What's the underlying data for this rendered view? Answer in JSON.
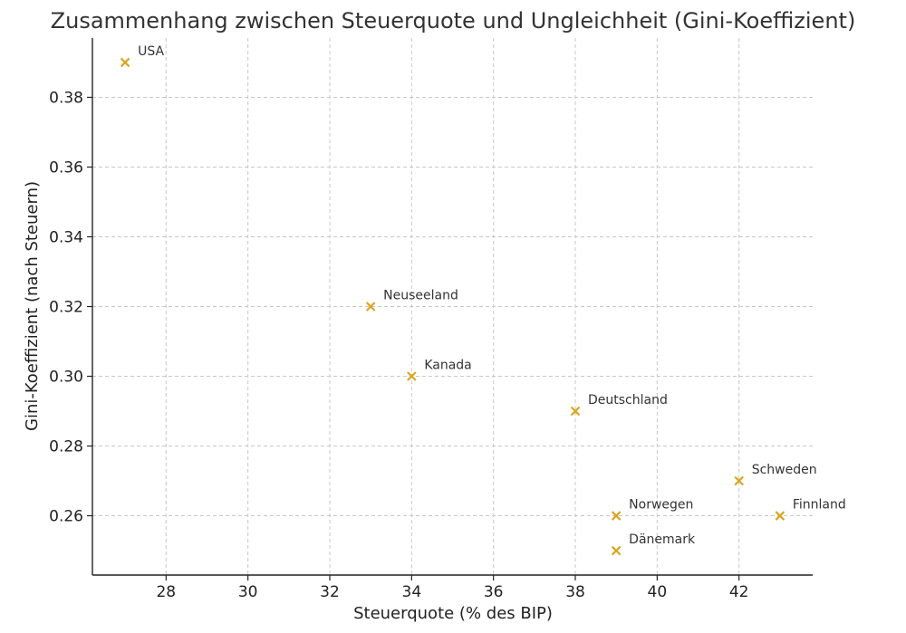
{
  "chart_data": {
    "type": "scatter",
    "title": "Zusammenhang zwischen Steuerquote und Ungleichheit (Gini-Koeffizient)",
    "xlabel": "Steuerquote (% des BIP)",
    "ylabel": "Gini-Koeffizient (nach Steuern)",
    "xlim": [
      26.2,
      43.8
    ],
    "ylim": [
      0.243,
      0.397
    ],
    "xticks": [
      28,
      30,
      32,
      34,
      36,
      38,
      40,
      42
    ],
    "xtick_labels": [
      "28",
      "30",
      "32",
      "34",
      "36",
      "38",
      "40",
      "42"
    ],
    "yticks": [
      0.26,
      0.28,
      0.3,
      0.32,
      0.34,
      0.36,
      0.38
    ],
    "ytick_labels": [
      "0.26",
      "0.28",
      "0.30",
      "0.32",
      "0.34",
      "0.36",
      "0.38"
    ],
    "grid": true,
    "marker": "x",
    "color": "#DAA520",
    "points": [
      {
        "label": "USA",
        "x": 27,
        "y": 0.39
      },
      {
        "label": "Neuseeland",
        "x": 33,
        "y": 0.32
      },
      {
        "label": "Kanada",
        "x": 34,
        "y": 0.3
      },
      {
        "label": "Deutschland",
        "x": 38,
        "y": 0.29
      },
      {
        "label": "Schweden",
        "x": 42,
        "y": 0.27
      },
      {
        "label": "Norwegen",
        "x": 39,
        "y": 0.26
      },
      {
        "label": "Finnland",
        "x": 43,
        "y": 0.26
      },
      {
        "label": "Dänemark",
        "x": 39,
        "y": 0.25
      }
    ]
  }
}
